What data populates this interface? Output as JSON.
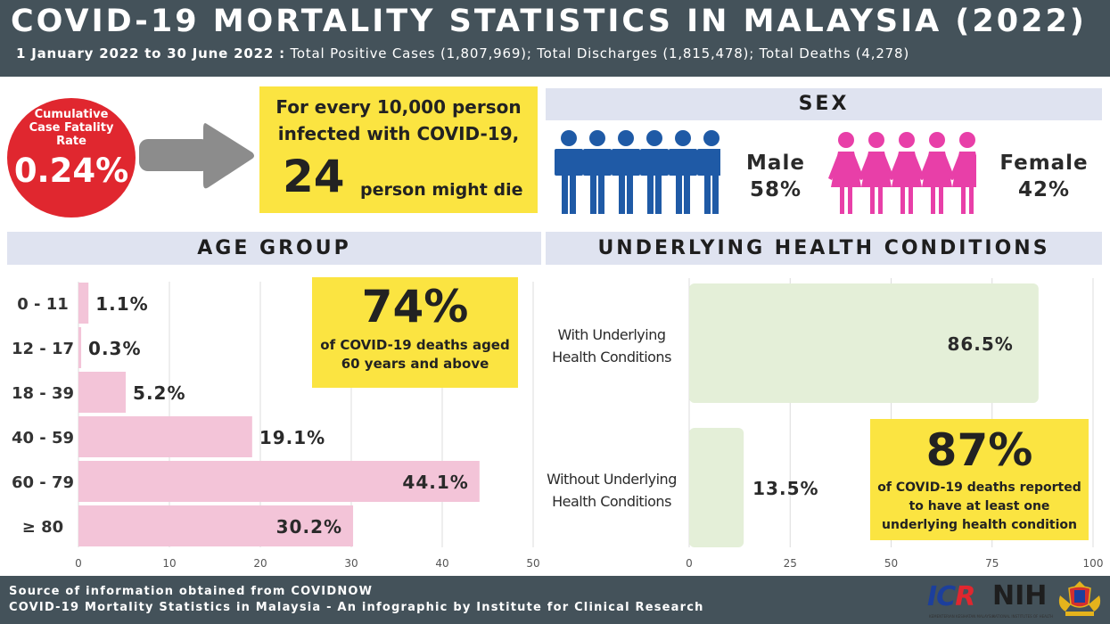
{
  "header": {
    "title": "COVID-19 MORTALITY STATISTICS IN MALAYSIA (2022)",
    "period": "1 January 2022 to 30 June 2022 :",
    "summary": "Total Positive Cases (1,807,969); Total Discharges (1,815,478); Total Deaths (4,278)"
  },
  "cfr": {
    "label": "Cumulative\nCase Fatality\nRate",
    "value": "0.24%",
    "color": "#e0272f"
  },
  "every": {
    "line1": "For every 10,000 person\ninfected with COVID-19,",
    "number": "24",
    "tail": "person might die"
  },
  "sex": {
    "heading": "SEX",
    "male": {
      "label": "Male",
      "value": "58%",
      "color": "#1f5aa6",
      "icon": "male-figure-icon"
    },
    "female": {
      "label": "Female",
      "value": "42%",
      "color": "#e83fa8",
      "icon": "female-figure-icon"
    }
  },
  "age": {
    "heading": "AGE GROUP",
    "highlight": "74%",
    "caption": "of COVID-19 deaths aged\n60 years and above"
  },
  "underlying": {
    "heading": "UNDERLYING HEALTH CONDITIONS",
    "highlight": "87%",
    "caption": "of COVID-19 deaths reported\nto have at least one\nunderlying health condition"
  },
  "chart_data": [
    {
      "type": "bar",
      "orientation": "horizontal",
      "categories": [
        "0 - 11",
        "12 - 17",
        "18 - 39",
        "40 - 59",
        "60 - 79",
        "≥ 80"
      ],
      "values": [
        1.1,
        0.3,
        5.2,
        19.1,
        44.1,
        30.2
      ],
      "value_labels": [
        "1.1%",
        "0.3%",
        "5.2%",
        "19.1%",
        "44.1%",
        "30.2%"
      ],
      "xlim": [
        0,
        50
      ],
      "xticks": [
        0,
        10,
        20,
        30,
        40,
        50
      ],
      "grid": true,
      "color": "#f3c4d8"
    },
    {
      "type": "bar",
      "orientation": "horizontal",
      "categories": [
        "With Underlying\nHealth Conditions",
        "Without Underlying\nHealth Conditions"
      ],
      "values": [
        86.5,
        13.5
      ],
      "value_labels": [
        "86.5%",
        "13.5%"
      ],
      "xlim": [
        0,
        100
      ],
      "xticks": [
        0,
        25,
        50,
        75,
        100
      ],
      "grid": true,
      "color": "#e4efd8"
    }
  ],
  "footer": {
    "line1": "Source of information obtained from COVIDNOW",
    "line2": "COVID-19 Mortality Statistics in Malaysia -  An infographic by Institute for Clinical Research",
    "logos": {
      "icr_main": "IC",
      "icr_r": "R",
      "nih": "NIH",
      "crest_icon": "malaysia-crest-icon",
      "icr_caption": "KEMENTERIAN KESIHATAN MALAYSIA",
      "nih_caption": "NATIONAL INSTITUTES OF HEALTH"
    }
  }
}
